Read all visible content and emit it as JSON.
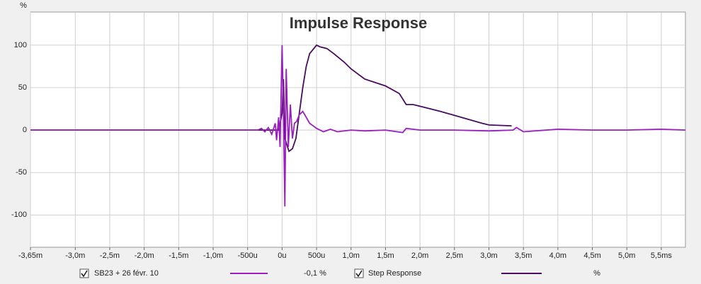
{
  "chart_data": {
    "type": "line",
    "title": "Impulse Response",
    "y_unit": "%",
    "xlim": [
      -3.65,
      5.85
    ],
    "ylim": [
      -138,
      139
    ],
    "xticks": [
      {
        "value": -3.65,
        "label": "-3,65m"
      },
      {
        "value": -3.0,
        "label": "-3,0m"
      },
      {
        "value": -2.5,
        "label": "-2,5m"
      },
      {
        "value": -2.0,
        "label": "-2,0m"
      },
      {
        "value": -1.5,
        "label": "-1,5m"
      },
      {
        "value": -1.0,
        "label": "-1,0m"
      },
      {
        "value": -0.5,
        "label": "-500u"
      },
      {
        "value": 0,
        "label": "0u"
      },
      {
        "value": 0.5,
        "label": "500u"
      },
      {
        "value": 1.0,
        "label": "1,0m"
      },
      {
        "value": 1.5,
        "label": "1,5m"
      },
      {
        "value": 2.0,
        "label": "2,0m"
      },
      {
        "value": 2.5,
        "label": "2,5m"
      },
      {
        "value": 3.0,
        "label": "3,0m"
      },
      {
        "value": 3.5,
        "label": "3,5m"
      },
      {
        "value": 4.0,
        "label": "4,0m"
      },
      {
        "value": 4.5,
        "label": "4,5m"
      },
      {
        "value": 5.0,
        "label": "5,0m"
      },
      {
        "value": 5.5,
        "label": "5,5ms"
      }
    ],
    "yticks": [
      100,
      50,
      0,
      -50,
      -100
    ],
    "grid": true,
    "series": [
      {
        "name": "SB23 + 26 févr. 10",
        "color": "#9a1fc0",
        "readout": "-0,1 %",
        "x": [
          -3.65,
          -0.35,
          -0.3,
          -0.25,
          -0.2,
          -0.15,
          -0.1,
          -0.08,
          -0.05,
          -0.03,
          0,
          0.02,
          0.04,
          0.06,
          0.09,
          0.12,
          0.15,
          0.18,
          0.21,
          0.25,
          0.3,
          0.35,
          0.4,
          0.5,
          0.6,
          0.7,
          0.8,
          1.0,
          1.2,
          1.5,
          1.75,
          1.8,
          2.0,
          2.5,
          3.0,
          3.35,
          3.4,
          3.5,
          4.0,
          4.5,
          5.0,
          5.5,
          5.85
        ],
        "values": [
          0,
          0,
          2,
          -2,
          3,
          -5,
          8,
          -12,
          15,
          -20,
          100,
          20,
          -90,
          72,
          -20,
          30,
          -10,
          8,
          10,
          18,
          22,
          15,
          8,
          2,
          -2,
          1,
          -2,
          0,
          -1,
          0,
          -3,
          2,
          0,
          0,
          -1,
          0,
          3,
          -2,
          1,
          0,
          0,
          1,
          0
        ]
      },
      {
        "name": "Step Response",
        "color": "#4a0a5e",
        "readout": "%",
        "x": [
          -3.65,
          -0.05,
          0,
          0.02,
          0.04,
          0.1,
          0.15,
          0.2,
          0.25,
          0.3,
          0.35,
          0.4,
          0.5,
          0.55,
          0.65,
          0.75,
          0.9,
          1.0,
          1.2,
          1.5,
          1.7,
          1.8,
          1.9,
          2.0,
          2.3,
          2.6,
          2.9,
          3.0,
          3.33
        ],
        "values": [
          0,
          0,
          20,
          60,
          -10,
          -25,
          -22,
          -10,
          20,
          50,
          75,
          90,
          100,
          98,
          96,
          90,
          80,
          72,
          60,
          52,
          43,
          30,
          30,
          28,
          22,
          15,
          8,
          6,
          5
        ]
      }
    ]
  }
}
